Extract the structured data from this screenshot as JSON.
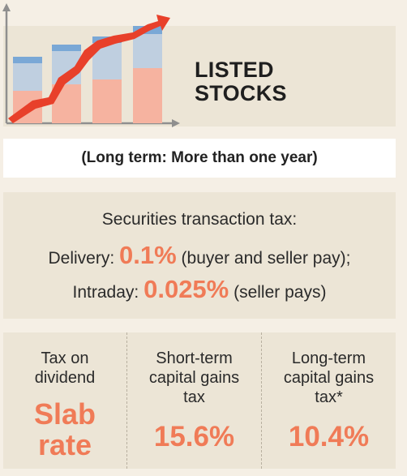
{
  "header": {
    "title_line1": "LISTED",
    "title_line2": "STOCKS"
  },
  "subtitle": "(Long term: More than one year)",
  "securities_transaction_tax": {
    "title": "Securities transaction tax:",
    "delivery_label": "Delivery:",
    "delivery_value": "0.1%",
    "delivery_note": "(buyer and seller pay);",
    "intraday_label": "Intraday:",
    "intraday_value": "0.025%",
    "intraday_note": "(seller pays)"
  },
  "taxes": [
    {
      "label_line1": "Tax on",
      "label_line2": "dividend",
      "label_line3": "",
      "value_line1": "Slab",
      "value_line2": "rate"
    },
    {
      "label_line1": "Short-term",
      "label_line2": "capital gains",
      "label_line3": "tax",
      "value_line1": "15.6%",
      "value_line2": ""
    },
    {
      "label_line1": "Long-term",
      "label_line2": "capital gains",
      "label_line3": "tax*",
      "value_line1": "10.4%",
      "value_line2": ""
    }
  ],
  "colors": {
    "accent": "#f07b57",
    "panel": "#ece5d6",
    "arrow": "#e8402a",
    "bar_top": "#7aa8d6",
    "bar_mid": "#bfcfe0",
    "bar_low": "#f6b3a0"
  },
  "icon": "rising-stock-chart-icon"
}
